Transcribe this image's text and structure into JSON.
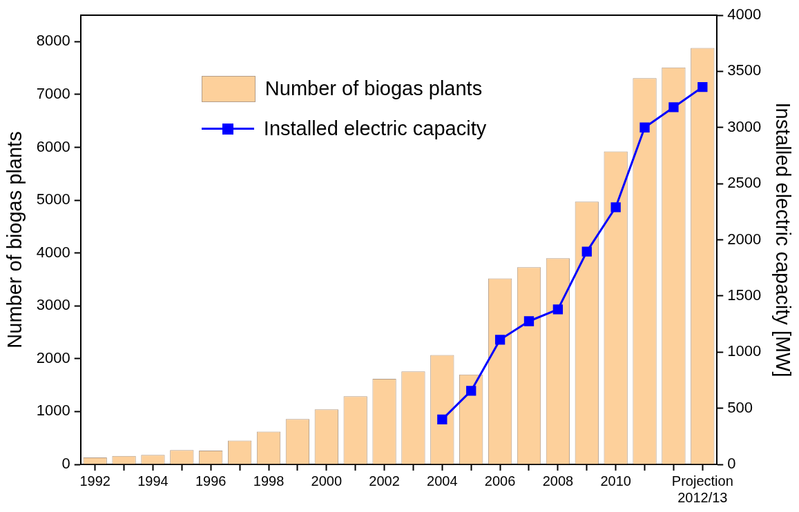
{
  "chart_data": {
    "type": "bar",
    "ylabel": "Number of biogas plants",
    "y2label": "Installed electric capacity [MW]",
    "categories": [
      "1992",
      null,
      "1994",
      null,
      "1996",
      null,
      "1998",
      null,
      "2000",
      null,
      "2002",
      null,
      "2004",
      null,
      "2006",
      null,
      "2008",
      null,
      "2010",
      null,
      null,
      "Projection 2012/13"
    ],
    "series": [
      {
        "name": "Number of biogas plants",
        "color": "#fdd09b",
        "values": [
          130,
          160,
          180,
          270,
          260,
          450,
          620,
          860,
          1040,
          1290,
          1620,
          1760,
          2070,
          1700,
          3520,
          3730,
          3900,
          4970,
          5920,
          7310,
          7510,
          7880
        ]
      },
      {
        "name": "Installed electric capacity",
        "type": "line",
        "axis": "y2",
        "color": "#0000ff",
        "marker": "square",
        "values": [
          null,
          null,
          null,
          null,
          null,
          null,
          null,
          null,
          null,
          null,
          null,
          null,
          400,
          655,
          1110,
          1275,
          1380,
          1895,
          2290,
          3000,
          3180,
          3360
        ]
      }
    ],
    "ylim": [
      0,
      8500
    ],
    "yticks": [
      0,
      1000,
      2000,
      3000,
      4000,
      5000,
      6000,
      7000,
      8000
    ],
    "y2lim": [
      0,
      4000
    ],
    "y2ticks": [
      0,
      500,
      1000,
      1500,
      2000,
      2500,
      3000,
      3500,
      4000
    ],
    "grid": false,
    "legend": "top"
  }
}
